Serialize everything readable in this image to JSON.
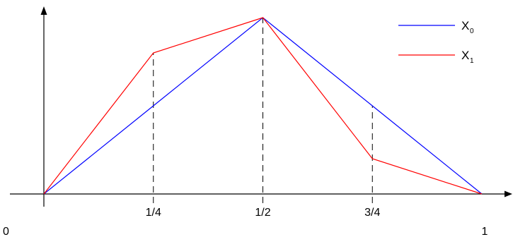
{
  "chart_data": {
    "type": "line",
    "x_ticks": [
      {
        "value": 0,
        "label": "0"
      },
      {
        "value": 0.25,
        "label": "1/4"
      },
      {
        "value": 0.5,
        "label": "1/2"
      },
      {
        "value": 0.75,
        "label": "3/4"
      },
      {
        "value": 1,
        "label": "1"
      }
    ],
    "xlim": [
      0,
      1
    ],
    "ylim": [
      0,
      1
    ],
    "grid": false,
    "legend_position": "top-right",
    "series": [
      {
        "name": "X",
        "subscript": "0",
        "color": "#0000ff",
        "x": [
          0,
          0.25,
          0.5,
          0.75,
          1
        ],
        "y": [
          0,
          0.5,
          1.0,
          0.5,
          0
        ]
      },
      {
        "name": "X",
        "subscript": "1",
        "color": "#ff0000",
        "x": [
          0,
          0.25,
          0.5,
          0.75,
          1
        ],
        "y": [
          0,
          0.8,
          1.0,
          0.2,
          0
        ]
      }
    ],
    "dashed_markers": [
      0.25,
      0.5,
      0.75
    ]
  }
}
